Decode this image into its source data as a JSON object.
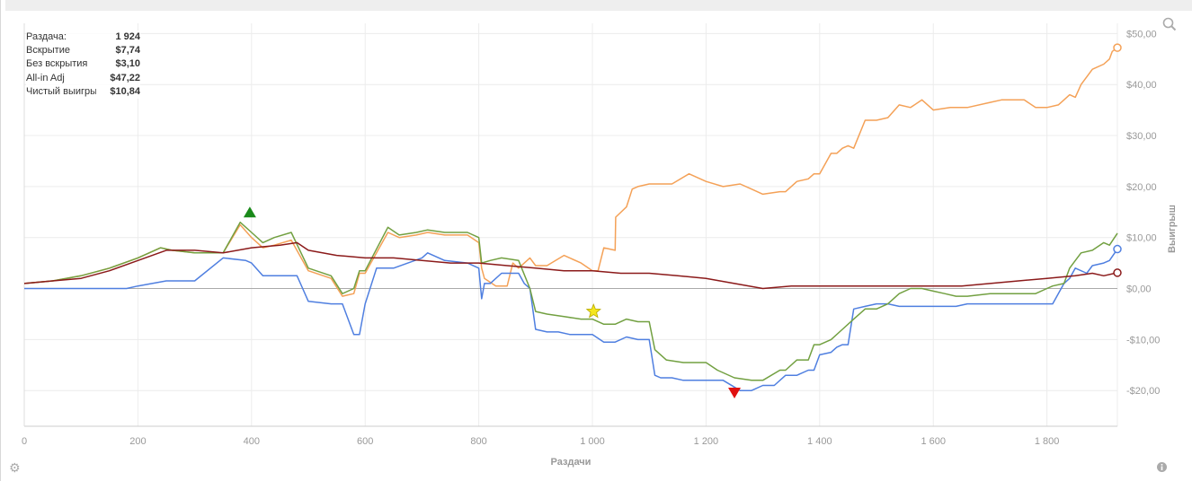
{
  "stats": [
    {
      "label": "Раздача:",
      "value": "1 924"
    },
    {
      "label": "Вскрытие",
      "value": "$7,74"
    },
    {
      "label": "Без вскрытия",
      "value": "$3,10"
    },
    {
      "label": "All-in Adj",
      "value": "$47,22"
    },
    {
      "label": "Чистый выигрыш",
      "value": "$10,84"
    }
  ],
  "icons": {
    "zoom": "zoom-icon",
    "settings": "gear-icon",
    "info": "info-icon"
  },
  "chart_data": {
    "type": "line",
    "xlabel": "Раздачи",
    "ylabel": "Выигрыш",
    "xlim": [
      0,
      1924
    ],
    "ylim": [
      -27,
      52
    ],
    "x_ticks": [
      0,
      200,
      400,
      600,
      800,
      1000,
      1200,
      1400,
      1600,
      1800
    ],
    "x_tick_labels": [
      "0",
      "200",
      "400",
      "600",
      "800",
      "1 000",
      "1 200",
      "1 400",
      "1 600",
      "1 800"
    ],
    "y_ticks": [
      50,
      40,
      30,
      20,
      10,
      0,
      -10,
      -20
    ],
    "y_tick_labels": [
      "$50,00",
      "$40,00",
      "$30,00",
      "$20,00",
      "$10,00",
      "$0,00",
      "-$10,00",
      "-$20,00"
    ],
    "grid": true,
    "series": [
      {
        "key": "allin",
        "color": "#f4a157",
        "end_marker": true,
        "x": [
          0,
          50,
          100,
          150,
          200,
          240,
          260,
          300,
          350,
          380,
          400,
          420,
          440,
          470,
          500,
          540,
          560,
          580,
          590,
          600,
          640,
          660,
          690,
          710,
          740,
          780,
          800,
          805,
          810,
          830,
          850,
          860,
          870,
          890,
          900,
          920,
          950,
          980,
          1000,
          1010,
          1020,
          1040,
          1041,
          1060,
          1070,
          1080,
          1100,
          1140,
          1170,
          1200,
          1230,
          1260,
          1280,
          1300,
          1330,
          1340,
          1360,
          1380,
          1390,
          1400,
          1420,
          1430,
          1440,
          1450,
          1460,
          1480,
          1500,
          1520,
          1540,
          1560,
          1580,
          1600,
          1630,
          1660,
          1700,
          1720,
          1760,
          1780,
          1800,
          1820,
          1830,
          1840,
          1850,
          1860,
          1880,
          1900,
          1910,
          1915,
          1924
        ],
        "y": [
          1,
          1.5,
          2.5,
          4,
          6,
          8,
          7.5,
          7,
          7,
          12.5,
          10,
          8,
          8.5,
          9.5,
          3.5,
          2,
          -1.5,
          -1,
          3,
          3,
          11,
          10,
          10.5,
          11,
          10.5,
          10.5,
          9,
          4,
          2,
          0.5,
          0.5,
          5,
          4,
          6,
          4.5,
          4.5,
          6.5,
          5,
          3.5,
          3.5,
          8,
          7.5,
          14,
          16,
          19.5,
          20,
          20.5,
          20.5,
          22.5,
          21,
          20,
          20.5,
          19.5,
          18.5,
          19,
          19,
          21,
          21.5,
          22.5,
          22.5,
          26.5,
          26.5,
          27.5,
          28,
          27.5,
          33,
          33,
          33.5,
          36,
          35.5,
          37,
          35,
          35.5,
          35.5,
          36.5,
          37,
          37,
          35.5,
          35.5,
          36,
          37,
          38,
          37.5,
          40,
          43,
          44,
          45,
          46.5,
          47.22
        ]
      },
      {
        "key": "showdown",
        "color": "#4f7fe0",
        "end_marker": true,
        "x": [
          0,
          50,
          100,
          150,
          180,
          200,
          250,
          300,
          350,
          390,
          400,
          420,
          450,
          480,
          490,
          500,
          540,
          560,
          580,
          590,
          600,
          620,
          650,
          700,
          710,
          740,
          780,
          800,
          805,
          810,
          820,
          840,
          870,
          880,
          890,
          900,
          920,
          940,
          960,
          1000,
          1020,
          1040,
          1060,
          1080,
          1100,
          1110,
          1120,
          1140,
          1160,
          1180,
          1200,
          1230,
          1260,
          1280,
          1300,
          1320,
          1340,
          1360,
          1380,
          1390,
          1400,
          1420,
          1430,
          1440,
          1450,
          1460,
          1480,
          1500,
          1520,
          1540,
          1560,
          1580,
          1600,
          1620,
          1640,
          1660,
          1700,
          1720,
          1760,
          1780,
          1800,
          1810,
          1830,
          1840,
          1850,
          1870,
          1880,
          1900,
          1910,
          1924
        ],
        "y": [
          0,
          0,
          0,
          0,
          0,
          0.5,
          1.5,
          1.5,
          6,
          5.5,
          5,
          2.5,
          2.5,
          2.5,
          0,
          -2.5,
          -3,
          -3,
          -9,
          -9,
          -3,
          4,
          4,
          6,
          7,
          5.5,
          5,
          4,
          -2,
          1,
          1,
          3,
          3,
          1,
          0,
          -8,
          -8.5,
          -8.5,
          -9,
          -9,
          -10.5,
          -10.5,
          -9.5,
          -10,
          -10,
          -17,
          -17.5,
          -17.5,
          -18,
          -18,
          -18,
          -18,
          -20,
          -20,
          -19,
          -19,
          -17,
          -17,
          -16,
          -16,
          -13,
          -12.5,
          -11.5,
          -11,
          -11,
          -4,
          -3.5,
          -3,
          -3,
          -3.5,
          -3.5,
          -3.5,
          -3.5,
          -3.5,
          -3.5,
          -3,
          -3,
          -3,
          -3,
          -3,
          -3,
          -3,
          1,
          2,
          4,
          3,
          4.5,
          5,
          5.5,
          7.74
        ]
      },
      {
        "key": "net",
        "color": "#72a041",
        "end_marker": false,
        "x": [
          0,
          50,
          100,
          150,
          200,
          240,
          260,
          300,
          350,
          380,
          400,
          420,
          440,
          470,
          500,
          540,
          560,
          580,
          590,
          600,
          640,
          660,
          690,
          710,
          740,
          780,
          800,
          805,
          820,
          840,
          870,
          890,
          900,
          920,
          950,
          980,
          1000,
          1020,
          1040,
          1060,
          1080,
          1100,
          1110,
          1130,
          1160,
          1180,
          1200,
          1220,
          1250,
          1280,
          1300,
          1330,
          1340,
          1360,
          1380,
          1390,
          1400,
          1420,
          1440,
          1460,
          1480,
          1500,
          1520,
          1540,
          1560,
          1580,
          1600,
          1620,
          1640,
          1660,
          1700,
          1720,
          1760,
          1780,
          1800,
          1810,
          1830,
          1840,
          1850,
          1860,
          1880,
          1900,
          1910,
          1924
        ],
        "y": [
          1,
          1.5,
          2.5,
          4,
          6,
          8,
          7.5,
          7,
          7,
          13,
          11,
          9,
          10,
          11,
          4,
          2.5,
          -1,
          0,
          3.5,
          3.5,
          12,
          10.5,
          11,
          11.5,
          11,
          11,
          10,
          5,
          5.5,
          6,
          5.5,
          0,
          -4.5,
          -5,
          -5.5,
          -6,
          -6,
          -7,
          -7,
          -6,
          -6.5,
          -6.5,
          -12,
          -14,
          -14.5,
          -14.5,
          -14.5,
          -16,
          -17.5,
          -18,
          -18,
          -16,
          -16,
          -14,
          -14,
          -11,
          -11,
          -10,
          -8,
          -6,
          -4,
          -4,
          -3,
          -1,
          0,
          0,
          -0.5,
          -1,
          -1.5,
          -1.5,
          -1,
          -1,
          -1,
          -1,
          0,
          0.5,
          1,
          4,
          5.5,
          7,
          7.5,
          9,
          8.5,
          10.84
        ]
      },
      {
        "key": "noshowdown",
        "color": "#8b1a1a",
        "end_marker": true,
        "x": [
          0,
          50,
          100,
          150,
          200,
          250,
          300,
          350,
          400,
          450,
          480,
          500,
          550,
          600,
          650,
          700,
          750,
          800,
          850,
          900,
          950,
          1000,
          1050,
          1100,
          1150,
          1200,
          1250,
          1300,
          1350,
          1400,
          1450,
          1500,
          1550,
          1600,
          1650,
          1700,
          1750,
          1800,
          1850,
          1880,
          1900,
          1924
        ],
        "y": [
          1,
          1.5,
          2,
          3.5,
          5.5,
          7.5,
          7.5,
          7,
          8,
          8.5,
          9,
          7.5,
          6.5,
          6,
          6,
          5.5,
          5,
          5,
          4.5,
          4,
          3.5,
          3.5,
          3,
          3,
          2.5,
          2,
          1,
          0,
          0.5,
          0.5,
          0.5,
          0.5,
          0.5,
          0.5,
          0.5,
          1,
          1.5,
          2,
          2.5,
          3,
          2.5,
          3.1
        ]
      }
    ],
    "markers": [
      {
        "type": "triangle-up",
        "x": 397,
        "y": 15,
        "color": "#1a8a1a"
      },
      {
        "type": "star",
        "x": 1002,
        "y": -4.5,
        "color": "#f5e61e"
      },
      {
        "type": "triangle-down",
        "x": 1250,
        "y": -20.5,
        "color": "#e01010"
      }
    ]
  }
}
